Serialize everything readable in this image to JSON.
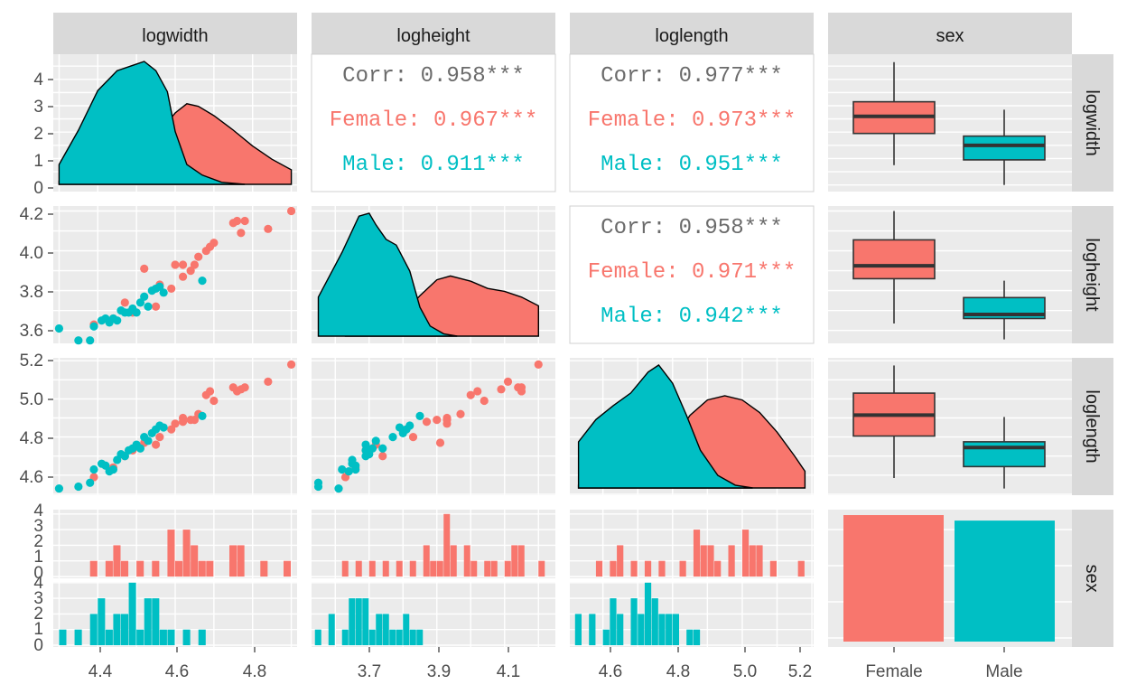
{
  "colors": {
    "Female": "#F8766D",
    "Male": "#00BFC4",
    "corr": "#6b6b6b",
    "panel": "#EBEBEB",
    "strip": "#D9D9D9",
    "grid": "#FFFFFF"
  },
  "strips": {
    "columns": [
      "logwidth",
      "logheight",
      "loglength",
      "sex"
    ],
    "rows": [
      "logwidth",
      "logheight",
      "loglength",
      "sex"
    ]
  },
  "ticks": {
    "x": {
      "logwidth": [
        "4.4",
        "4.6",
        "4.8"
      ],
      "logheight": [
        "3.7",
        "3.9",
        "4.1"
      ],
      "loglength": [
        "4.6",
        "4.8",
        "5.0",
        "5.2"
      ],
      "sex": [
        "Female",
        "Male"
      ]
    },
    "y": {
      "logwidth": [
        "0",
        "1",
        "2",
        "3",
        "4"
      ],
      "logheight": [
        "3.6",
        "3.8",
        "4.0",
        "4.2"
      ],
      "loglength": [
        "4.6",
        "4.8",
        "5.0",
        "5.2"
      ],
      "sex_female": [
        "0",
        "1",
        "2",
        "3",
        "4"
      ],
      "sex_male": [
        "0",
        "1",
        "2",
        "3",
        "4"
      ]
    }
  },
  "correlations": [
    {
      "row": "logwidth",
      "col": "logheight",
      "lines": [
        "Corr: 0.958***",
        "Female: 0.967***",
        "Male: 0.911***"
      ]
    },
    {
      "row": "logwidth",
      "col": "loglength",
      "lines": [
        "Corr: 0.977***",
        "Female: 0.973***",
        "Male: 0.951***"
      ]
    },
    {
      "row": "logheight",
      "col": "loglength",
      "lines": [
        "Corr: 0.958***",
        "Female: 0.971***",
        "Male: 0.942***"
      ]
    }
  ],
  "chart_data": {
    "type": "scatter",
    "variables": [
      "logwidth",
      "logheight",
      "loglength",
      "sex"
    ],
    "groups": [
      "Female",
      "Male"
    ],
    "points": {
      "Female": [
        {
          "w": 4.39,
          "h": 3.63,
          "l": 4.59
        },
        {
          "w": 4.44,
          "h": 3.66,
          "l": 4.64
        },
        {
          "w": 4.47,
          "h": 3.74,
          "l": 4.7
        },
        {
          "w": 4.49,
          "h": 3.69,
          "l": 4.73
        },
        {
          "w": 4.52,
          "h": 3.91,
          "l": 4.77
        },
        {
          "w": 4.55,
          "h": 3.72,
          "l": 4.76
        },
        {
          "w": 4.56,
          "h": 3.83,
          "l": 4.8
        },
        {
          "w": 4.59,
          "h": 3.81,
          "l": 4.84
        },
        {
          "w": 4.6,
          "h": 3.93,
          "l": 4.87
        },
        {
          "w": 4.62,
          "h": 3.93,
          "l": 4.9
        },
        {
          "w": 4.62,
          "h": 3.87,
          "l": 4.88
        },
        {
          "w": 4.64,
          "h": 3.9,
          "l": 4.89
        },
        {
          "w": 4.65,
          "h": 3.93,
          "l": 4.89
        },
        {
          "w": 4.66,
          "h": 3.97,
          "l": 4.92
        },
        {
          "w": 4.68,
          "h": 4.0,
          "l": 5.02
        },
        {
          "w": 4.69,
          "h": 4.02,
          "l": 5.04
        },
        {
          "w": 4.7,
          "h": 4.04,
          "l": 4.99
        },
        {
          "w": 4.75,
          "h": 4.14,
          "l": 5.06
        },
        {
          "w": 4.76,
          "h": 4.15,
          "l": 5.04
        },
        {
          "w": 4.77,
          "h": 4.09,
          "l": 5.05
        },
        {
          "w": 4.78,
          "h": 4.15,
          "l": 5.06
        },
        {
          "w": 4.84,
          "h": 4.11,
          "l": 5.09
        },
        {
          "w": 4.9,
          "h": 4.2,
          "l": 5.18
        }
      ],
      "Male": [
        {
          "w": 4.3,
          "h": 3.61,
          "l": 4.53
        },
        {
          "w": 4.35,
          "h": 3.55,
          "l": 4.54
        },
        {
          "w": 4.38,
          "h": 3.55,
          "l": 4.56
        },
        {
          "w": 4.39,
          "h": 3.62,
          "l": 4.63
        },
        {
          "w": 4.41,
          "h": 3.65,
          "l": 4.66
        },
        {
          "w": 4.42,
          "h": 3.66,
          "l": 4.65
        },
        {
          "w": 4.43,
          "h": 3.64,
          "l": 4.62
        },
        {
          "w": 4.44,
          "h": 3.66,
          "l": 4.63
        },
        {
          "w": 4.45,
          "h": 3.65,
          "l": 4.68
        },
        {
          "w": 4.46,
          "h": 3.7,
          "l": 4.71
        },
        {
          "w": 4.47,
          "h": 3.69,
          "l": 4.7
        },
        {
          "w": 4.48,
          "h": 3.69,
          "l": 4.73
        },
        {
          "w": 4.49,
          "h": 3.71,
          "l": 4.74
        },
        {
          "w": 4.5,
          "h": 3.69,
          "l": 4.76
        },
        {
          "w": 4.51,
          "h": 3.74,
          "l": 4.74
        },
        {
          "w": 4.52,
          "h": 3.77,
          "l": 4.8
        },
        {
          "w": 4.53,
          "h": 3.72,
          "l": 4.78
        },
        {
          "w": 4.54,
          "h": 3.8,
          "l": 4.82
        },
        {
          "w": 4.55,
          "h": 3.81,
          "l": 4.84
        },
        {
          "w": 4.56,
          "h": 3.82,
          "l": 4.86
        },
        {
          "w": 4.57,
          "h": 3.79,
          "l": 4.85
        },
        {
          "w": 4.67,
          "h": 3.85,
          "l": 4.91
        }
      ]
    },
    "density_curves": {
      "logwidth": {
        "Female": [
          [
            4.3,
            0.12
          ],
          [
            4.4,
            0.22
          ],
          [
            4.45,
            0.42
          ],
          [
            4.5,
            0.85
          ],
          [
            4.55,
            1.8
          ],
          [
            4.6,
            2.7
          ],
          [
            4.63,
            3.05
          ],
          [
            4.66,
            2.95
          ],
          [
            4.7,
            2.6
          ],
          [
            4.75,
            2.05
          ],
          [
            4.8,
            1.45
          ],
          [
            4.85,
            0.95
          ],
          [
            4.9,
            0.55
          ]
        ],
        "Male": [
          [
            4.3,
            0.75
          ],
          [
            4.35,
            2.05
          ],
          [
            4.4,
            3.55
          ],
          [
            4.45,
            4.3
          ],
          [
            4.5,
            4.55
          ],
          [
            4.52,
            4.65
          ],
          [
            4.55,
            4.3
          ],
          [
            4.58,
            3.5
          ],
          [
            4.6,
            2.0
          ],
          [
            4.63,
            0.75
          ],
          [
            4.67,
            0.35
          ],
          [
            4.72,
            0.08
          ],
          [
            4.78,
            0.0
          ]
        ]
      },
      "logheight": {
        "Female": [
          [
            3.63,
            0.1
          ],
          [
            3.7,
            0.25
          ],
          [
            3.75,
            0.45
          ],
          [
            3.8,
            0.75
          ],
          [
            3.85,
            1.4
          ],
          [
            3.9,
            1.95
          ],
          [
            3.94,
            2.08
          ],
          [
            4.0,
            1.9
          ],
          [
            4.05,
            1.65
          ],
          [
            4.1,
            1.55
          ],
          [
            4.15,
            1.35
          ],
          [
            4.2,
            1.05
          ]
        ],
        "Male": [
          [
            3.55,
            1.35
          ],
          [
            3.62,
            2.9
          ],
          [
            3.67,
            4.15
          ],
          [
            3.7,
            4.25
          ],
          [
            3.72,
            3.85
          ],
          [
            3.75,
            3.35
          ],
          [
            3.78,
            3.15
          ],
          [
            3.82,
            2.25
          ],
          [
            3.85,
            1.0
          ],
          [
            3.88,
            0.35
          ],
          [
            3.92,
            0.08
          ],
          [
            3.96,
            0.0
          ]
        ]
      },
      "loglength": {
        "Female": [
          [
            4.53,
            0.1
          ],
          [
            4.6,
            0.25
          ],
          [
            4.7,
            0.7
          ],
          [
            4.8,
            1.7
          ],
          [
            4.85,
            2.6
          ],
          [
            4.9,
            3.15
          ],
          [
            4.95,
            3.3
          ],
          [
            5.0,
            3.15
          ],
          [
            5.05,
            2.7
          ],
          [
            5.1,
            2.0
          ],
          [
            5.15,
            1.15
          ],
          [
            5.18,
            0.6
          ]
        ],
        "Male": [
          [
            4.53,
            1.65
          ],
          [
            4.58,
            2.45
          ],
          [
            4.63,
            2.95
          ],
          [
            4.68,
            3.4
          ],
          [
            4.73,
            4.15
          ],
          [
            4.76,
            4.4
          ],
          [
            4.8,
            3.75
          ],
          [
            4.84,
            2.6
          ],
          [
            4.88,
            1.35
          ],
          [
            4.93,
            0.45
          ],
          [
            4.98,
            0.1
          ],
          [
            5.03,
            0.0
          ]
        ]
      }
    },
    "histograms": {
      "binwidth": {
        "logwidth": 0.02,
        "logheight": 0.02,
        "loglength": 0.02
      },
      "logwidth": {
        "Female": [
          [
            4.39,
            1
          ],
          [
            4.43,
            1
          ],
          [
            4.45,
            2
          ],
          [
            4.47,
            1
          ],
          [
            4.51,
            1
          ],
          [
            4.55,
            1
          ],
          [
            4.59,
            3
          ],
          [
            4.61,
            1
          ],
          [
            4.63,
            3
          ],
          [
            4.65,
            2
          ],
          [
            4.67,
            1
          ],
          [
            4.69,
            1
          ],
          [
            4.75,
            2
          ],
          [
            4.77,
            2
          ],
          [
            4.83,
            1
          ],
          [
            4.89,
            1
          ]
        ],
        "Male": [
          [
            4.31,
            1
          ],
          [
            4.35,
            1
          ],
          [
            4.39,
            2
          ],
          [
            4.41,
            3
          ],
          [
            4.43,
            1
          ],
          [
            4.45,
            2
          ],
          [
            4.47,
            2
          ],
          [
            4.49,
            4
          ],
          [
            4.51,
            1
          ],
          [
            4.53,
            3
          ],
          [
            4.55,
            3
          ],
          [
            4.57,
            1
          ],
          [
            4.59,
            1
          ],
          [
            4.63,
            1
          ],
          [
            4.67,
            1
          ]
        ]
      },
      "logheight": {
        "Female": [
          [
            3.63,
            1
          ],
          [
            3.67,
            1
          ],
          [
            3.71,
            1
          ],
          [
            3.75,
            1
          ],
          [
            3.79,
            1
          ],
          [
            3.83,
            1
          ],
          [
            3.87,
            2
          ],
          [
            3.89,
            1
          ],
          [
            3.91,
            1
          ],
          [
            3.93,
            4
          ],
          [
            3.95,
            2
          ],
          [
            3.99,
            2
          ],
          [
            4.01,
            1
          ],
          [
            4.05,
            1
          ],
          [
            4.07,
            1
          ],
          [
            4.11,
            1
          ],
          [
            4.13,
            2
          ],
          [
            4.15,
            2
          ],
          [
            4.21,
            1
          ]
        ],
        "Male": [
          [
            3.55,
            1
          ],
          [
            3.59,
            2
          ],
          [
            3.63,
            1
          ],
          [
            3.65,
            3
          ],
          [
            3.67,
            3
          ],
          [
            3.69,
            3
          ],
          [
            3.71,
            1
          ],
          [
            3.73,
            2
          ],
          [
            3.75,
            2
          ],
          [
            3.77,
            1
          ],
          [
            3.79,
            1
          ],
          [
            3.81,
            2
          ],
          [
            3.83,
            1
          ],
          [
            3.85,
            1
          ]
        ]
      },
      "loglength": {
        "Female": [
          [
            4.59,
            1
          ],
          [
            4.63,
            1
          ],
          [
            4.65,
            2
          ],
          [
            4.69,
            1
          ],
          [
            4.73,
            1
          ],
          [
            4.77,
            1
          ],
          [
            4.83,
            1
          ],
          [
            4.87,
            3
          ],
          [
            4.89,
            2
          ],
          [
            4.91,
            2
          ],
          [
            4.93,
            1
          ],
          [
            4.97,
            2
          ],
          [
            5.01,
            3
          ],
          [
            5.03,
            2
          ],
          [
            5.05,
            2
          ],
          [
            5.09,
            1
          ],
          [
            5.17,
            1
          ]
        ],
        "Male": [
          [
            4.53,
            2
          ],
          [
            4.57,
            2
          ],
          [
            4.61,
            1
          ],
          [
            4.63,
            3
          ],
          [
            4.65,
            2
          ],
          [
            4.69,
            3
          ],
          [
            4.71,
            2
          ],
          [
            4.73,
            4
          ],
          [
            4.75,
            3
          ],
          [
            4.77,
            2
          ],
          [
            4.79,
            2
          ],
          [
            4.81,
            2
          ],
          [
            4.85,
            1
          ],
          [
            4.87,
            1
          ]
        ]
      }
    },
    "boxplots": {
      "logwidth": {
        "Female": {
          "min": 0.75,
          "q1": 1.95,
          "median": 2.6,
          "q3": 3.15,
          "max": 4.65
        },
        "Male": {
          "min": 0.0,
          "q1": 0.95,
          "median": 1.5,
          "q3": 1.85,
          "max": 2.85
        }
      },
      "logheight": {
        "Female": {
          "min": 3.635,
          "q1": 3.86,
          "median": 3.925,
          "q3": 4.055,
          "max": 4.2
        },
        "Male": {
          "min": 3.555,
          "q1": 3.66,
          "median": 3.68,
          "q3": 3.765,
          "max": 3.85
        }
      },
      "loglength": {
        "Female": {
          "min": 4.585,
          "q1": 4.805,
          "median": 4.915,
          "q3": 5.03,
          "max": 5.175
        },
        "Male": {
          "min": 4.53,
          "q1": 4.645,
          "median": 4.745,
          "q3": 4.775,
          "max": 4.905
        }
      }
    },
    "counts": {
      "Female": 23,
      "Male": 22
    }
  }
}
